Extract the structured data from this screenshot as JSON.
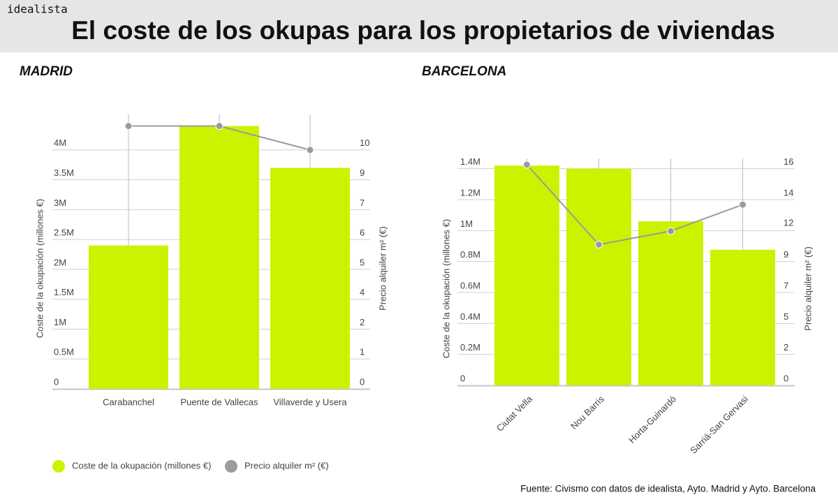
{
  "brand": "idealista",
  "title": "El coste de los okupas para los propietarios de viviendas",
  "source": "Fuente: Civismo con datos de idealista, Ayto. Madrid y Ayto. Barcelona",
  "chart_data": [
    {
      "type": "bar-line",
      "title": "MADRID",
      "categories": [
        "Carabanchel",
        "Puente de Vallecas",
        "Villaverde y Usera"
      ],
      "y_label": "Coste de la okupación (millones €)",
      "y2_label": "Precio alquiler m² (€)",
      "ylim": [
        0,
        4.5
      ],
      "y2lim": [
        0,
        11.25
      ],
      "yticks": [
        0,
        {
          "value": 0.5,
          "label": "0.5M"
        },
        {
          "value": 1,
          "label": "1M"
        },
        {
          "value": 1.5,
          "label": "1.5M"
        },
        {
          "value": 2,
          "label": "2M"
        },
        {
          "value": 2.5,
          "label": "2.5M"
        },
        {
          "value": 3,
          "label": "3M"
        },
        {
          "value": 3.5,
          "label": "3.5M"
        },
        {
          "value": 4,
          "label": "4M"
        }
      ],
      "y2ticks": [
        0,
        {
          "value": 1.25,
          "label": "1"
        },
        {
          "value": 2.5,
          "label": "2"
        },
        {
          "value": 3.75,
          "label": "4"
        },
        5,
        {
          "value": 6.25,
          "label": "6"
        },
        {
          "value": 7.5,
          "label": "7"
        },
        {
          "value": 8.75,
          "label": "9"
        },
        10
      ],
      "grid": true,
      "series": [
        {
          "name": "Coste de la okupación (millones €)",
          "color": "#ccf200",
          "values": [
            2.4,
            4.4,
            3.7
          ]
        },
        {
          "name": "Precio alquiler m² (€)",
          "color": "#9e9a9c",
          "axis": "y2",
          "values": [
            11,
            11,
            10
          ]
        }
      ]
    },
    {
      "type": "bar-line",
      "title": "BARCELONA",
      "categories": [
        "Ciutat Vella",
        "Nou Barris",
        "Horta-Guinardó",
        "Sarriá-San Gervasi"
      ],
      "y_label": "Coste de la okupación (millones €)",
      "y2_label": "Precio alquiler m² (€)",
      "ylim": [
        0,
        1.43
      ],
      "y2lim": [
        0,
        16.35
      ],
      "yticks": [
        0,
        {
          "value": 0.2,
          "label": "0.2M"
        },
        {
          "value": 0.4,
          "label": "0.4M"
        },
        {
          "value": 0.6,
          "label": "0.6M"
        },
        {
          "value": 0.8,
          "label": "0.8M"
        },
        {
          "value": 1,
          "label": "1M"
        },
        {
          "value": 1.2,
          "label": "1.2M"
        },
        {
          "value": 1.4,
          "label": "1.4M"
        }
      ],
      "y2ticks": [
        0,
        {
          "value": 2.29,
          "label": "2"
        },
        {
          "value": 4.57,
          "label": "5"
        },
        {
          "value": 6.86,
          "label": "7"
        },
        {
          "value": 9.14,
          "label": "9"
        },
        {
          "value": 11.5,
          "label": "12"
        },
        {
          "value": 13.71,
          "label": "14"
        },
        16
      ],
      "grid": true,
      "series": [
        {
          "name": "Coste de la okupación (millones €)",
          "color": "#ccf200",
          "values": [
            1.42,
            1.4,
            1.06,
            0.876
          ]
        },
        {
          "name": "Precio alquiler m² (€)",
          "color": "#9e9a9c",
          "axis": "y2",
          "values": [
            16.3,
            10.4,
            11.4,
            13.35
          ]
        }
      ]
    }
  ]
}
